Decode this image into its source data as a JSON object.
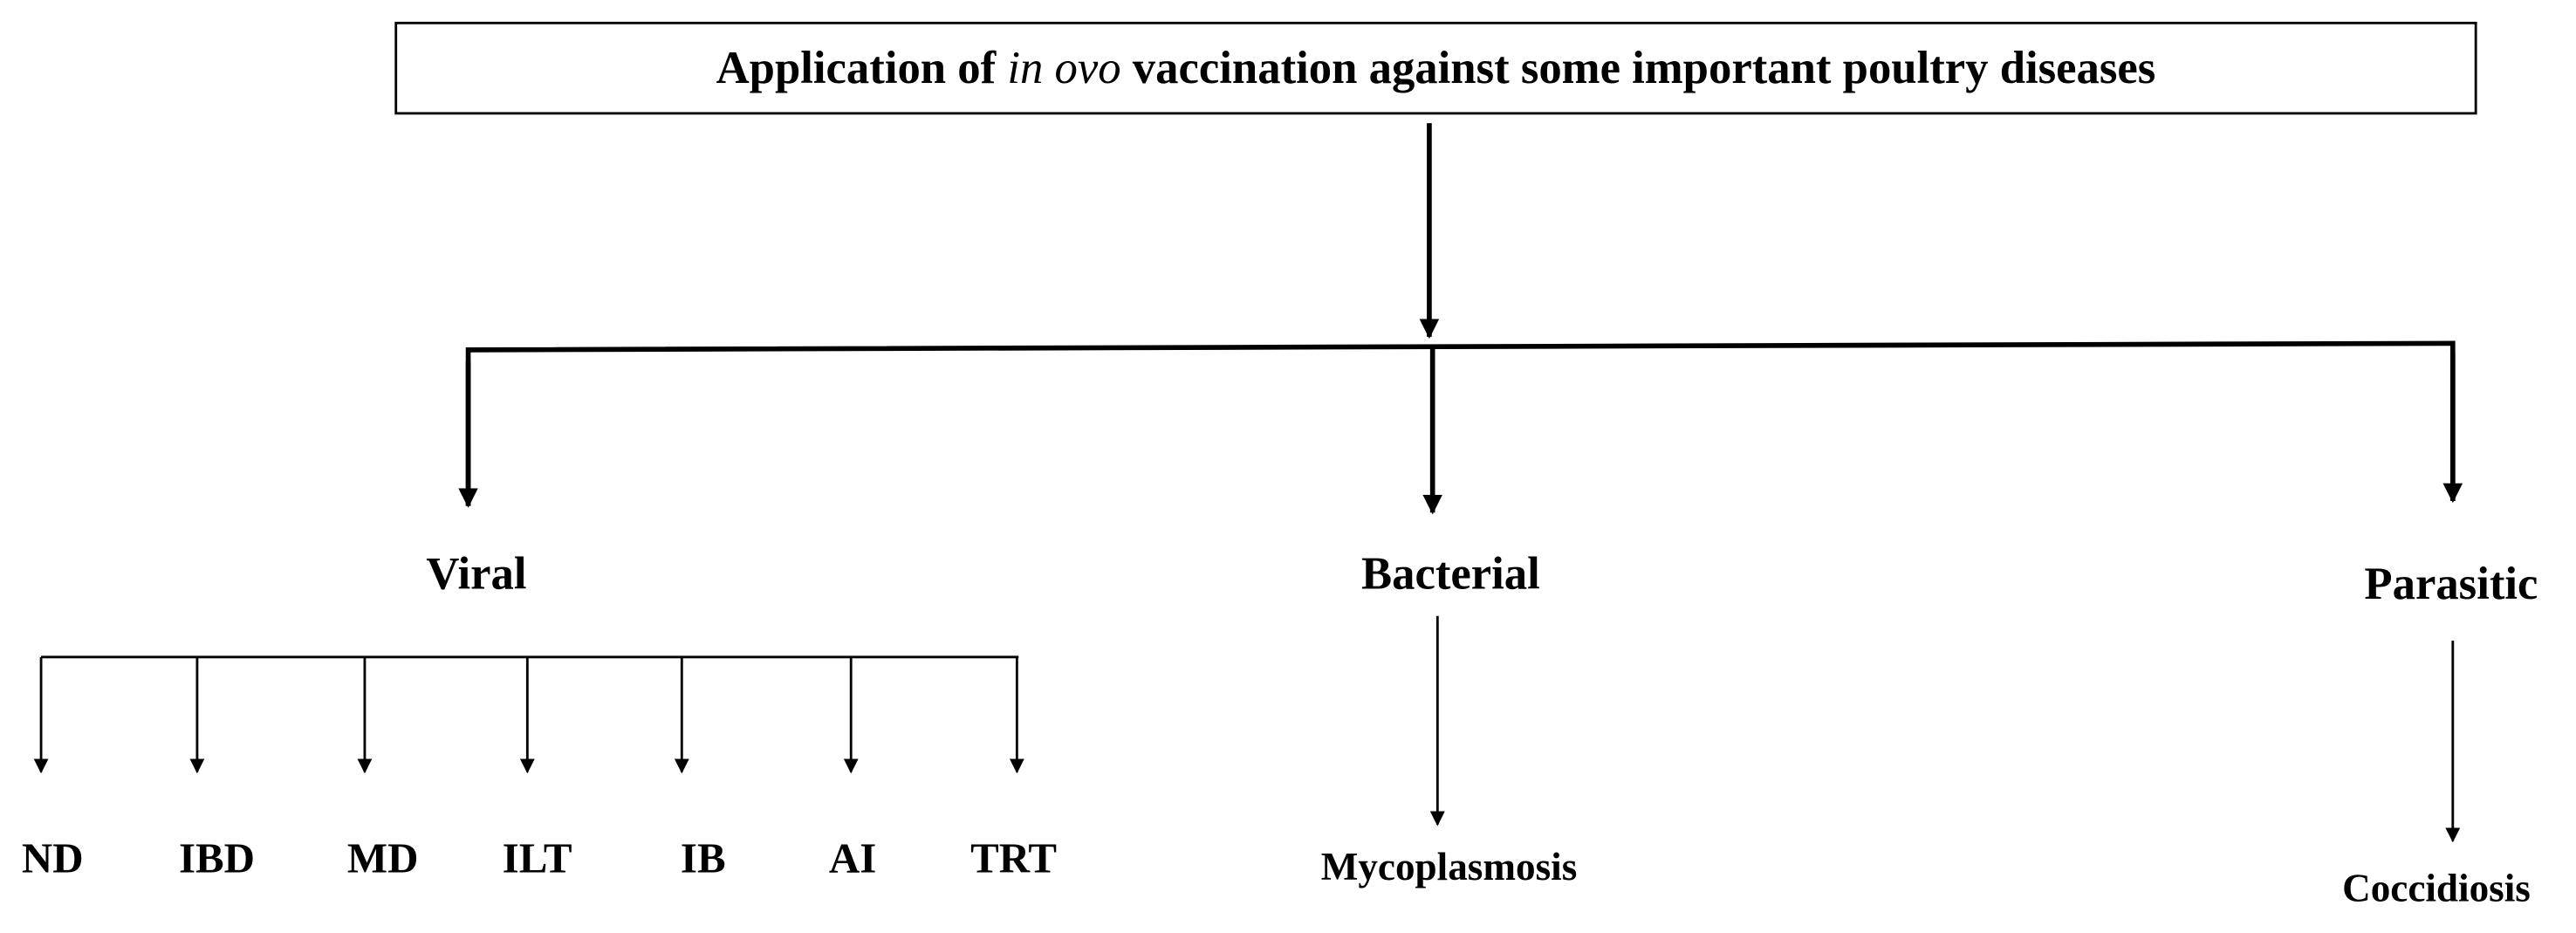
{
  "header": {
    "title_before": "Application of",
    "title_italic": "in ovo",
    "title_after": "vaccination against some important poultry diseases"
  },
  "nodes": [
    {
      "label": "Viral",
      "children": [
        "ND",
        "IBD",
        "MD",
        "ILT",
        "IB",
        "AI",
        "TRT"
      ]
    },
    {
      "label": "Bacterial",
      "children": [
        "Mycoplasmosis"
      ]
    },
    {
      "label": "Parasitic",
      "children": [
        "Coccidiosis"
      ]
    }
  ]
}
